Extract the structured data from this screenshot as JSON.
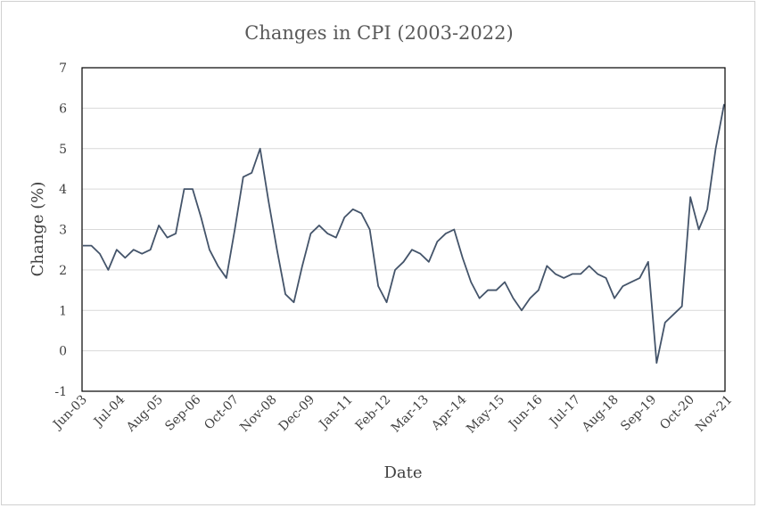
{
  "chart_data": {
    "type": "line",
    "title": "Changes in CPI (2003-2022)",
    "xlabel": "Date",
    "ylabel": "Change (%)",
    "ylim": [
      -1,
      7
    ],
    "yticks": [
      -1,
      0,
      1,
      2,
      3,
      4,
      5,
      6,
      7
    ],
    "grid": "horizontal",
    "line_color": "#44546a",
    "x_tick_labels": [
      "Jun-03",
      "Jul-04",
      "Aug-05",
      "Sep-06",
      "Oct-07",
      "Nov-08",
      "Dec-09",
      "Jan-11",
      "Feb-12",
      "Mar-13",
      "Apr-14",
      "May-15",
      "Jun-16",
      "Jul-17",
      "Aug-18",
      "Sep-19",
      "Oct-20",
      "Nov-21"
    ],
    "series": [
      {
        "values": [
          2.6,
          2.6,
          2.4,
          2.0,
          2.5,
          2.3,
          2.5,
          2.4,
          2.5,
          3.1,
          2.8,
          2.9,
          4.0,
          4.0,
          3.3,
          2.5,
          2.1,
          1.8,
          3.0,
          4.3,
          4.4,
          5.0,
          3.7,
          2.5,
          1.4,
          1.2,
          2.1,
          2.9,
          3.1,
          2.9,
          2.8,
          3.3,
          3.5,
          3.4,
          3.0,
          1.6,
          1.2,
          2.0,
          2.2,
          2.5,
          2.4,
          2.2,
          2.7,
          2.9,
          3.0,
          2.3,
          1.7,
          1.3,
          1.5,
          1.5,
          1.7,
          1.3,
          1.0,
          1.3,
          1.5,
          2.1,
          1.9,
          1.8,
          1.9,
          1.9,
          2.1,
          1.9,
          1.8,
          1.3,
          1.6,
          1.7,
          1.8,
          2.2,
          -0.3,
          0.7,
          0.9,
          1.1,
          3.8,
          3.0,
          3.5,
          5.0,
          6.1
        ]
      }
    ]
  }
}
